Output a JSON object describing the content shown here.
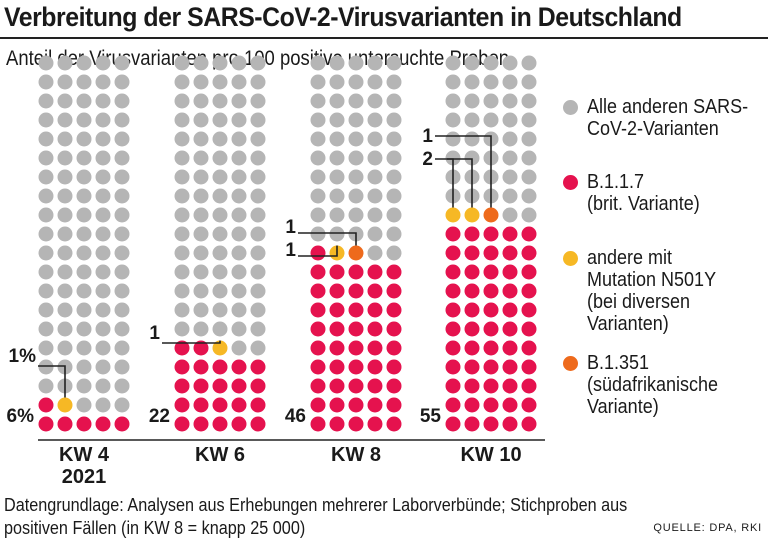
{
  "title": "Verbreitung der SARS-CoV-2-Virusvarianten in Deutschland",
  "subtitle": "Anteil der Virusvarianten pro 100 positive untersuchte Proben",
  "footnote": {
    "line1": "Datengrundlage: Analysen aus Erhebungen mehrerer Laborverbünde; Stichproben aus",
    "line2": "positiven Fällen (in KW 8 = knapp 25 000)"
  },
  "source": "QUELLE: DPA, RKI",
  "colors": {
    "other": "#b5b5b5",
    "b117": "#e5124e",
    "n501y": "#f6b825",
    "b1351": "#ee6a1c"
  },
  "legend": [
    {
      "key": "other",
      "lines": [
        "Alle anderen SARS-",
        "CoV-2-Varianten"
      ]
    },
    {
      "key": "b117",
      "lines": [
        "B.1.1.7",
        "(brit. Variante)"
      ]
    },
    {
      "key": "n501y",
      "lines": [
        "andere mit",
        "Mutation N501Y",
        "(bei diversen",
        "Varianten)"
      ]
    },
    {
      "key": "b1351",
      "lines": [
        "B.1.351",
        "(südafrikanische",
        "Variante)"
      ]
    }
  ],
  "chart_data": {
    "type": "waffle",
    "grid": "5x20 dots per week (100 samples)",
    "categories": [
      {
        "name": "KW 4",
        "sub": "2021"
      },
      {
        "name": "KW 6",
        "sub": ""
      },
      {
        "name": "KW 8",
        "sub": ""
      },
      {
        "name": "KW 10",
        "sub": ""
      }
    ],
    "series": [
      {
        "name": "B.1.1.7",
        "key": "b117",
        "values": [
          6,
          22,
          46,
          55
        ]
      },
      {
        "name": "andere mit Mutation N501Y",
        "key": "n501y",
        "values": [
          1,
          1,
          1,
          2
        ]
      },
      {
        "name": "B.1.351",
        "key": "b1351",
        "values": [
          0,
          0,
          1,
          1
        ]
      }
    ],
    "labels": {
      "b117": [
        "6%",
        "22",
        "46",
        "55"
      ],
      "n501y": [
        "1%",
        "1",
        "1",
        "2"
      ],
      "b1351": [
        "",
        "",
        "1",
        "1"
      ]
    }
  }
}
